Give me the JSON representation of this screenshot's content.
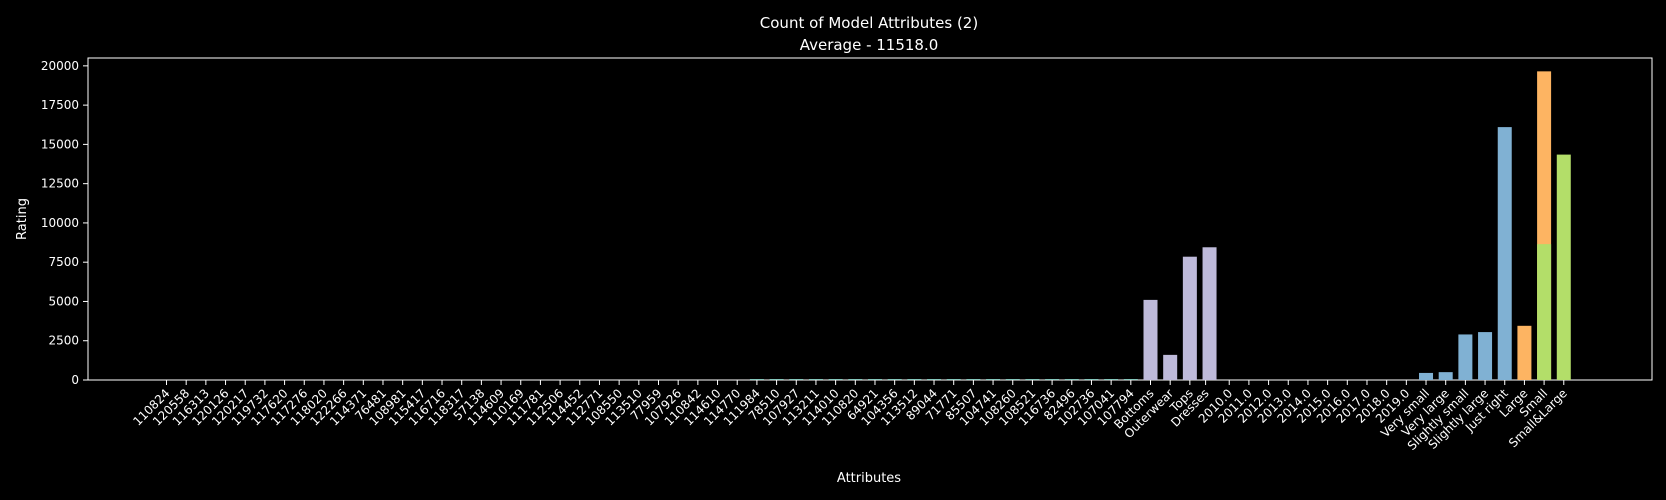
{
  "chart_data": {
    "type": "bar",
    "title": "Count of Model Attributes (2)",
    "subtitle": "Average - 11518.0",
    "xlabel": "Attributes",
    "ylabel": "Rating",
    "ylim": [
      0,
      20500
    ],
    "yticks": [
      0,
      2500,
      5000,
      7500,
      10000,
      12500,
      15000,
      17500,
      20000
    ],
    "grid": false,
    "colors": {
      "purple": "#bebada",
      "blue": "#80b1d3",
      "orange": "#fdb462",
      "green": "#b3de69",
      "teal": "#8dd3c7"
    },
    "categories": [
      "110824",
      "120558",
      "116313",
      "120126",
      "120217",
      "119732",
      "117620",
      "117276",
      "118020",
      "122266",
      "114371",
      "76481",
      "108981",
      "115417",
      "116716",
      "118317",
      "57138",
      "114609",
      "110169",
      "111781",
      "112506",
      "114452",
      "112771",
      "108550",
      "113510",
      "77959",
      "107926",
      "110842",
      "114610",
      "114770",
      "111984",
      "78510",
      "107927",
      "113211",
      "114010",
      "110820",
      "64921",
      "104356",
      "113512",
      "89044",
      "71771",
      "85507",
      "104741",
      "108260",
      "108521",
      "116736",
      "82496",
      "102736",
      "107041",
      "107794",
      "Bottoms",
      "Outerwear",
      "Tops",
      "Dresses",
      "2010.0",
      "2011.0",
      "2012.0",
      "2013.0",
      "2014.0",
      "2015.0",
      "2016.0",
      "2017.0",
      "2018.0",
      "2019.0",
      "Very small",
      "Very large",
      "Slightly small",
      "Slightly large",
      "Just right",
      "Large",
      "Small",
      "Small&Large"
    ],
    "category_x": [
      0,
      1,
      2,
      3,
      4,
      5,
      6,
      7,
      8,
      9,
      10,
      11,
      12,
      13,
      14,
      15,
      16,
      17,
      18,
      19,
      20,
      21,
      22,
      23,
      24,
      25,
      26,
      27,
      28,
      29,
      30,
      31,
      32,
      33,
      34,
      35,
      36,
      37,
      38,
      39,
      40,
      41,
      42,
      43,
      44,
      45,
      46,
      47,
      48,
      49,
      50,
      51,
      52,
      52.8,
      54,
      55,
      56,
      57,
      58,
      59,
      60,
      61,
      62,
      63,
      64,
      65,
      66,
      67,
      68,
      69,
      70,
      71
    ],
    "bars": [
      {
        "x": 30,
        "value": 60,
        "color": "teal"
      },
      {
        "x": 31,
        "value": 60,
        "color": "teal"
      },
      {
        "x": 32,
        "value": 60,
        "color": "teal"
      },
      {
        "x": 33,
        "value": 60,
        "color": "teal"
      },
      {
        "x": 34,
        "value": 60,
        "color": "teal"
      },
      {
        "x": 35,
        "value": 60,
        "color": "teal"
      },
      {
        "x": 36,
        "value": 60,
        "color": "teal"
      },
      {
        "x": 37,
        "value": 60,
        "color": "teal"
      },
      {
        "x": 38,
        "value": 60,
        "color": "teal"
      },
      {
        "x": 39,
        "value": 60,
        "color": "teal"
      },
      {
        "x": 40,
        "value": 60,
        "color": "teal"
      },
      {
        "x": 41,
        "value": 60,
        "color": "teal"
      },
      {
        "x": 42,
        "value": 60,
        "color": "teal"
      },
      {
        "x": 43,
        "value": 60,
        "color": "teal"
      },
      {
        "x": 44,
        "value": 60,
        "color": "teal"
      },
      {
        "x": 45,
        "value": 60,
        "color": "teal"
      },
      {
        "x": 46,
        "value": 60,
        "color": "teal"
      },
      {
        "x": 47,
        "value": 60,
        "color": "teal"
      },
      {
        "x": 48,
        "value": 60,
        "color": "teal"
      },
      {
        "x": 49,
        "value": 60,
        "color": "teal"
      },
      {
        "x": 50,
        "value": 5100,
        "color": "purple"
      },
      {
        "x": 51,
        "value": 1600,
        "color": "purple"
      },
      {
        "x": 52,
        "value": 7850,
        "color": "purple"
      },
      {
        "x": 53,
        "value": 8450,
        "color": "purple"
      },
      {
        "x": 64,
        "value": 450,
        "color": "blue"
      },
      {
        "x": 65,
        "value": 500,
        "color": "blue"
      },
      {
        "x": 66,
        "value": 2900,
        "color": "blue"
      },
      {
        "x": 67,
        "value": 3050,
        "color": "blue"
      },
      {
        "x": 68,
        "value": 16100,
        "color": "blue"
      },
      {
        "x": 69,
        "value": 3450,
        "color": "orange"
      },
      {
        "x": 70,
        "value": 19650,
        "color": "orange"
      },
      {
        "x": 70,
        "value": 8650,
        "color": "green"
      },
      {
        "x": 71,
        "value": 14350,
        "color": "green"
      }
    ]
  }
}
